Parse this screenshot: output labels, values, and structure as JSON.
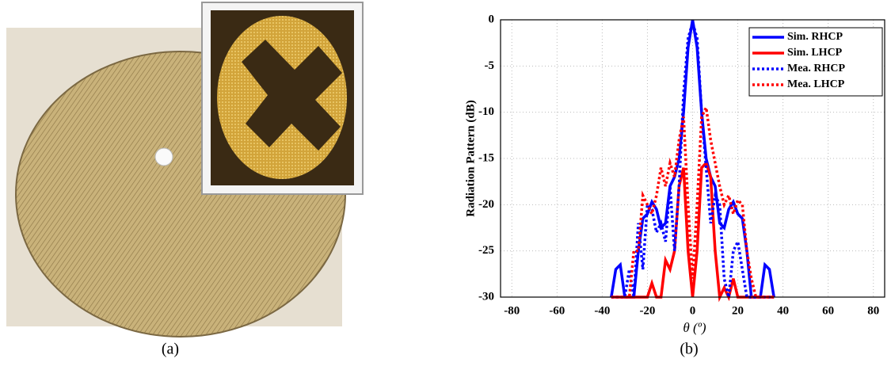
{
  "captions": {
    "a": "(a)",
    "b": "(b)"
  },
  "chart_data": {
    "type": "line",
    "xlabel": "θ (º)",
    "ylabel": "Radiation Pattern (dB)",
    "x": [
      -36,
      -34,
      -32,
      -30,
      -28,
      -26,
      -24,
      -22,
      -20,
      -18,
      -16,
      -14,
      -12,
      -10,
      -8,
      -6,
      -4,
      -2,
      0,
      2,
      4,
      6,
      8,
      10,
      12,
      14,
      16,
      18,
      20,
      22,
      24,
      26,
      28,
      30,
      32,
      34,
      36
    ],
    "series": [
      {
        "name": "Sim. RHCP",
        "color": "#0000ff",
        "style": "solid",
        "values": [
          -30,
          -27,
          -26.5,
          -30,
          -30,
          -30,
          -25,
          -21.5,
          -21,
          -19.7,
          -20.5,
          -22.5,
          -22,
          -18,
          -17,
          -15,
          -10,
          -3,
          0,
          -3,
          -10,
          -15,
          -17,
          -18,
          -22,
          -22.5,
          -20.5,
          -19.7,
          -21,
          -21.5,
          -25,
          -30,
          -30,
          -30,
          -26.5,
          -27,
          -30
        ]
      },
      {
        "name": "Sim. LHCP",
        "color": "#ff0000",
        "style": "solid",
        "values": [
          -30,
          -30,
          -30,
          -30,
          -30,
          -30,
          -30,
          -30,
          -30,
          -28.5,
          -30,
          -30,
          -26,
          -27,
          -25,
          -18,
          -16,
          -25,
          -30,
          -25,
          -16,
          -15.5,
          -17,
          -25,
          -30,
          -29,
          -30,
          -28,
          -30,
          -30,
          -30,
          -30,
          -30,
          -30,
          -30,
          -30,
          -30
        ]
      },
      {
        "name": "Mea. RHCP",
        "color": "#0000ff",
        "style": "dotted",
        "values": [
          -30,
          -30,
          -30,
          -30,
          -27,
          -30,
          -22,
          -27,
          -20,
          -20.5,
          -23,
          -22,
          -24,
          -18,
          -25,
          -18,
          -8,
          -2,
          -0.3,
          -2,
          -10,
          -16,
          -22,
          -19,
          -20,
          -28,
          -30,
          -25,
          -24,
          -27,
          -30,
          -30,
          -30,
          -30,
          -30,
          -30,
          -30
        ]
      },
      {
        "name": "Mea. LHCP",
        "color": "#ff0000",
        "style": "dotted",
        "values": [
          -30,
          -30,
          -30,
          -30,
          -30,
          -25,
          -25,
          -19,
          -20,
          -21,
          -19,
          -16,
          -18,
          -15.5,
          -17,
          -13,
          -10.5,
          -20,
          -28,
          -20,
          -10.5,
          -9.5,
          -13,
          -15.5,
          -18,
          -20,
          -19,
          -21,
          -19.5,
          -20,
          -25,
          -28,
          -30,
          -30,
          -30,
          -30,
          -30
        ]
      }
    ],
    "xlim": [
      -85,
      85
    ],
    "ylim": [
      -30,
      0
    ],
    "xticks": [
      -80,
      -60,
      -40,
      -20,
      0,
      20,
      40,
      60,
      80
    ],
    "yticks": [
      -30,
      -25,
      -20,
      -15,
      -10,
      -5,
      0
    ],
    "grid": true,
    "legend": "upper right"
  }
}
